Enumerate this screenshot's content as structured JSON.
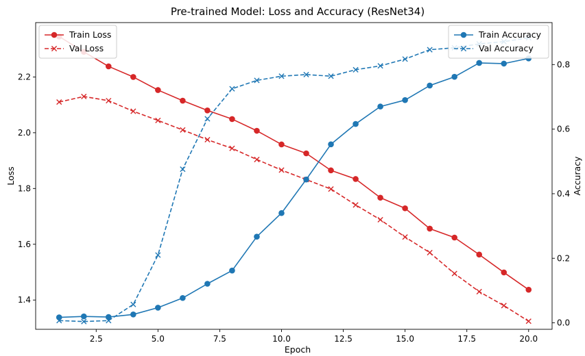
{
  "chart_data": {
    "type": "line",
    "title": "Pre-trained Model: Loss and Accuracy (ResNet34)",
    "xlabel": "Epoch",
    "ylabel_left": "Loss",
    "ylabel_right": "Accuracy",
    "xlim": [
      0.05,
      20.95
    ],
    "ylim_left": [
      1.295,
      2.395
    ],
    "ylim_right": [
      -0.02,
      0.93
    ],
    "xticks": [
      "2.5",
      "5.0",
      "7.5",
      "10.0",
      "12.5",
      "15.0",
      "17.5",
      "20.0"
    ],
    "xtick_values": [
      2.5,
      5.0,
      7.5,
      10.0,
      12.5,
      15.0,
      17.5,
      20.0
    ],
    "yticks_left": [
      "1.4",
      "1.6",
      "1.8",
      "2.0",
      "2.2"
    ],
    "ytick_values_left": [
      1.4,
      1.6,
      1.8,
      2.0,
      2.2
    ],
    "yticks_right": [
      "0.0",
      "0.2",
      "0.4",
      "0.6",
      "0.8"
    ],
    "ytick_values_right": [
      0.0,
      0.2,
      0.4,
      0.6,
      0.8
    ],
    "x": [
      1,
      2,
      3,
      4,
      5,
      6,
      7,
      8,
      9,
      10,
      11,
      12,
      13,
      14,
      15,
      16,
      17,
      18,
      19,
      20
    ],
    "series": [
      {
        "name": "Train Loss",
        "axis": "left",
        "color": "#d62728",
        "style": "solid",
        "marker": "circle",
        "values": [
          2.345,
          2.29,
          2.238,
          2.2,
          2.153,
          2.115,
          2.08,
          2.049,
          2.007,
          1.958,
          1.926,
          1.865,
          1.834,
          1.767,
          1.729,
          1.656,
          1.624,
          1.563,
          1.499,
          1.437
        ]
      },
      {
        "name": "Val Loss",
        "axis": "left",
        "color": "#d62728",
        "style": "dashed",
        "marker": "x",
        "values": [
          2.11,
          2.13,
          2.115,
          2.077,
          2.044,
          2.01,
          1.975,
          1.944,
          1.904,
          1.866,
          1.832,
          1.798,
          1.741,
          1.688,
          1.626,
          1.57,
          1.495,
          1.43,
          1.38,
          1.324
        ]
      },
      {
        "name": "Train Accuracy",
        "axis": "right",
        "color": "#1f77b4",
        "style": "solid",
        "marker": "circle",
        "values": [
          0.017,
          0.02,
          0.018,
          0.026,
          0.047,
          0.077,
          0.121,
          0.162,
          0.267,
          0.34,
          0.444,
          0.553,
          0.616,
          0.67,
          0.69,
          0.735,
          0.762,
          0.805,
          0.803,
          0.819
        ]
      },
      {
        "name": "Val Accuracy",
        "axis": "right",
        "color": "#1f77b4",
        "style": "dashed",
        "marker": "x",
        "values": [
          0.007,
          0.004,
          0.007,
          0.057,
          0.21,
          0.476,
          0.632,
          0.725,
          0.751,
          0.764,
          0.769,
          0.764,
          0.784,
          0.796,
          0.817,
          0.846,
          0.852,
          0.864,
          0.871,
          0.883
        ]
      }
    ],
    "legend_left_placement": "upper-left",
    "legend_right_placement": "upper-right",
    "grid": false
  }
}
